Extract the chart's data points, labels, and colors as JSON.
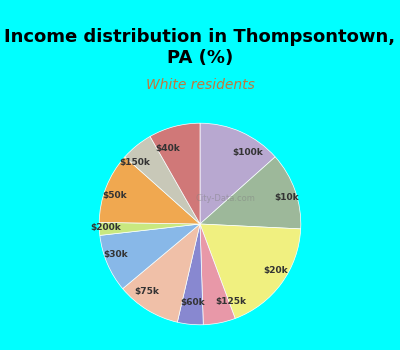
{
  "title": "Income distribution in Thompsontown,\nPA (%)",
  "subtitle": "White residents",
  "title_color": "#000000",
  "subtitle_color": "#c0783c",
  "background_outer": "#00FFFF",
  "background_inner": "#e8f5ee",
  "watermark": "City-Data.com",
  "labels": [
    "$100k",
    "$10k",
    "$20k",
    "$125k",
    "$60k",
    "$75k",
    "$30k",
    "$200k",
    "$50k",
    "$150k",
    "$40k"
  ],
  "values": [
    13,
    12,
    18,
    5,
    4,
    10,
    9,
    2,
    11,
    5,
    8
  ],
  "colors": [
    "#b8a8d0",
    "#9db89a",
    "#f0f080",
    "#e898a8",
    "#8888d0",
    "#f0c0a8",
    "#88b8e8",
    "#c8e880",
    "#f0a850",
    "#c8c8b8",
    "#d07878"
  ]
}
